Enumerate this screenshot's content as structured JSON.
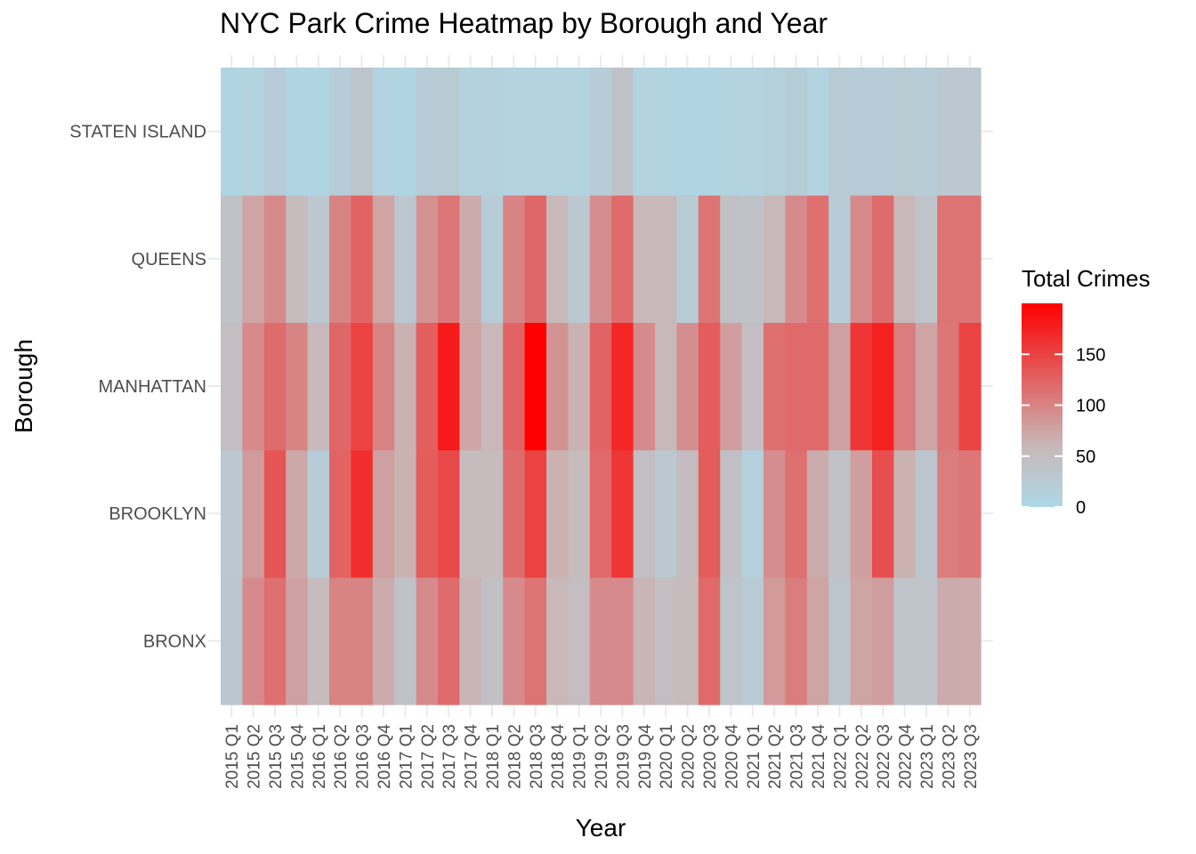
{
  "chart_data": {
    "type": "heatmap",
    "title": "NYC Park Crime Heatmap by Borough and Year",
    "xlabel": "Year",
    "ylabel": "Borough",
    "x_categories": [
      "2015 Q1",
      "2015 Q2",
      "2015 Q3",
      "2015 Q4",
      "2016 Q1",
      "2016 Q2",
      "2016 Q3",
      "2016 Q4",
      "2017 Q1",
      "2017 Q2",
      "2017 Q3",
      "2017 Q4",
      "2018 Q1",
      "2018 Q2",
      "2018 Q3",
      "2018 Q4",
      "2019 Q1",
      "2019 Q2",
      "2019 Q3",
      "2019 Q4",
      "2020 Q1",
      "2020 Q2",
      "2020 Q3",
      "2020 Q4",
      "2021 Q1",
      "2021 Q2",
      "2021 Q3",
      "2021 Q4",
      "2022 Q1",
      "2022 Q2",
      "2022 Q3",
      "2022 Q4",
      "2023 Q1",
      "2023 Q2",
      "2023 Q3"
    ],
    "y_categories": [
      "BRONX",
      "BROOKLYN",
      "MANHATTAN",
      "QUEENS",
      "STATEN ISLAND"
    ],
    "values": [
      [
        32,
        95,
        115,
        78,
        55,
        100,
        100,
        70,
        40,
        95,
        118,
        62,
        45,
        95,
        112,
        60,
        50,
        95,
        95,
        62,
        50,
        55,
        120,
        38,
        25,
        82,
        105,
        75,
        35,
        75,
        80,
        38,
        38,
        70,
        70
      ],
      [
        30,
        82,
        135,
        72,
        22,
        125,
        165,
        78,
        65,
        130,
        145,
        55,
        55,
        118,
        150,
        65,
        55,
        120,
        160,
        48,
        30,
        52,
        130,
        45,
        15,
        92,
        115,
        70,
        42,
        80,
        140,
        65,
        35,
        105,
        110
      ],
      [
        50,
        95,
        118,
        100,
        58,
        122,
        150,
        100,
        65,
        128,
        180,
        75,
        60,
        125,
        200,
        88,
        65,
        125,
        172,
        95,
        58,
        92,
        130,
        80,
        50,
        115,
        120,
        120,
        78,
        160,
        175,
        105,
        75,
        110,
        150
      ],
      [
        40,
        75,
        95,
        55,
        30,
        100,
        125,
        75,
        30,
        90,
        110,
        70,
        22,
        100,
        122,
        60,
        30,
        92,
        118,
        60,
        60,
        25,
        112,
        45,
        40,
        60,
        95,
        115,
        20,
        95,
        118,
        60,
        38,
        112,
        112
      ],
      [
        5,
        10,
        22,
        5,
        5,
        20,
        35,
        10,
        5,
        20,
        25,
        12,
        15,
        10,
        10,
        10,
        10,
        20,
        40,
        10,
        8,
        5,
        5,
        10,
        10,
        15,
        20,
        10,
        25,
        20,
        20,
        25,
        20,
        30,
        30
      ]
    ],
    "color_scale": {
      "low_color": "#add8e6",
      "mid_color": "#c8b8b9",
      "high_color": "#ff0000",
      "min": 0,
      "max": 200
    },
    "legend": {
      "title": "Total Crimes",
      "ticks": [
        0,
        50,
        100,
        150
      ],
      "placement": "right"
    },
    "grid": true
  }
}
